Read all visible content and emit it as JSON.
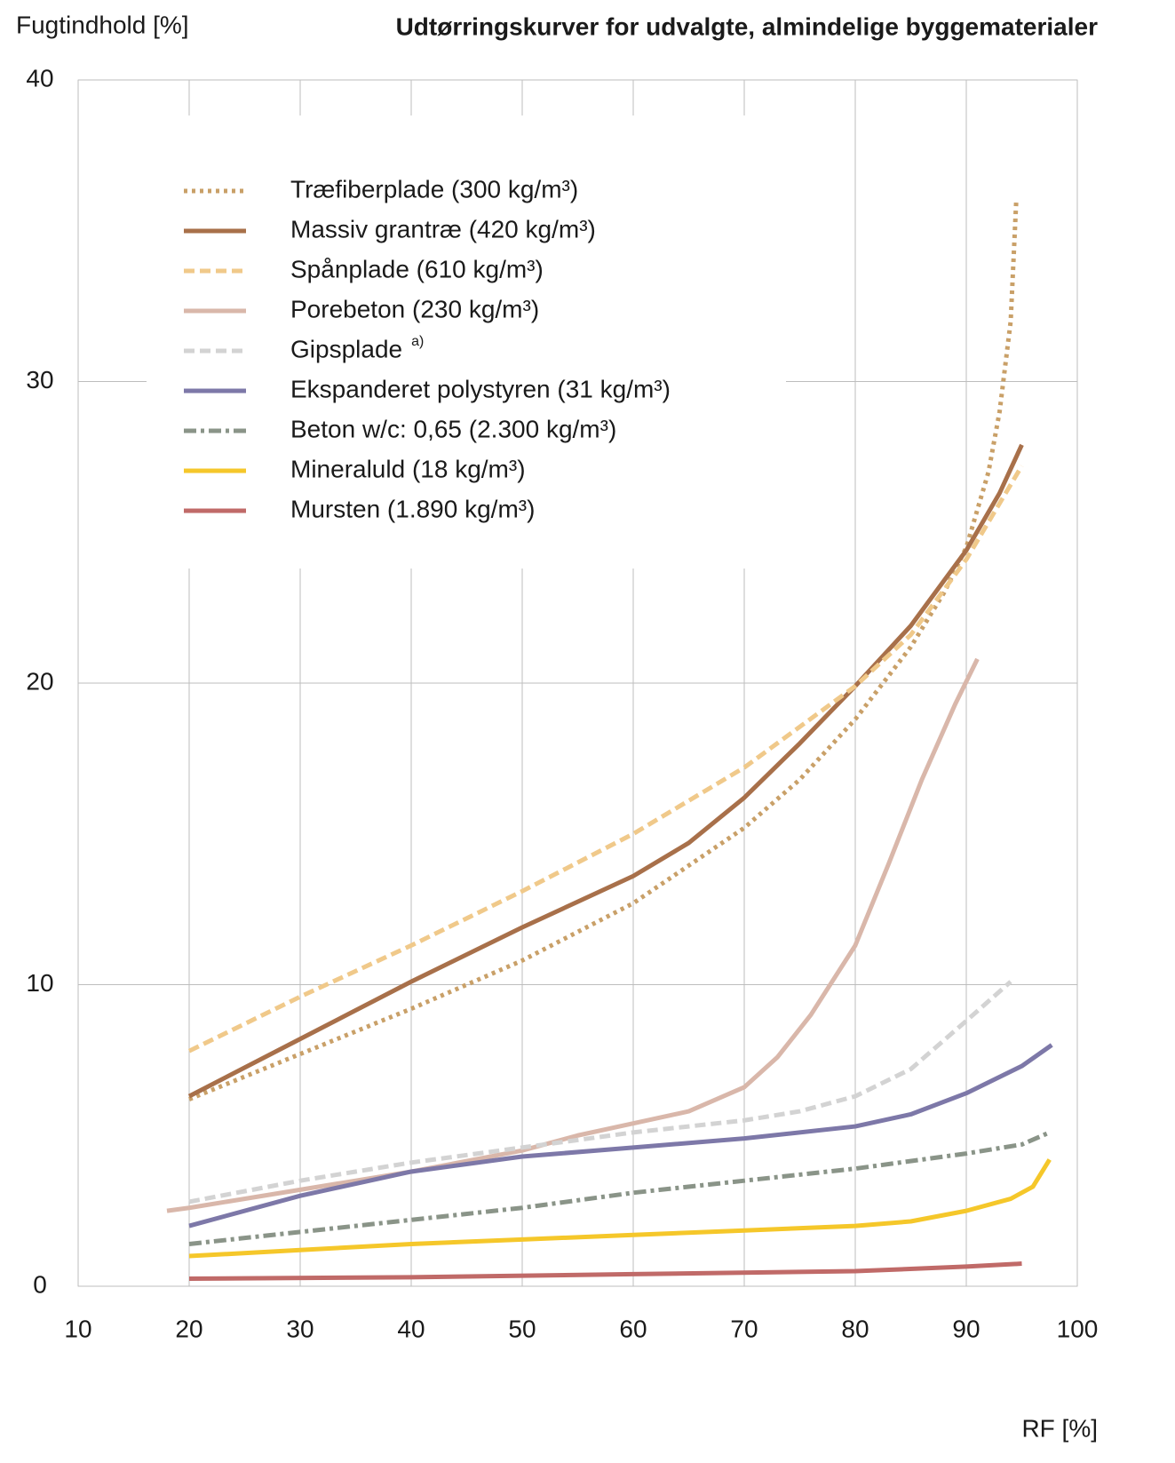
{
  "chart_data": {
    "type": "line",
    "title": "Udtørringskurver for udvalgte, almindelige byggematerialer",
    "y_label": "Fugtindhold [%]",
    "x_label": "RF [%]",
    "xlim": [
      10,
      100
    ],
    "xticks": [
      10,
      20,
      30,
      40,
      50,
      60,
      70,
      80,
      90,
      100
    ],
    "ylim": [
      0,
      40
    ],
    "yticks": [
      0,
      10,
      20,
      30,
      40
    ],
    "grid": true,
    "legend": "upper left",
    "series": [
      {
        "name": "Træfiberplade (300 kg/m³)",
        "color": "#c9a068",
        "style": "dotted",
        "x": [
          20,
          30,
          40,
          50,
          60,
          70,
          75,
          80,
          85,
          88,
          90,
          92,
          93,
          94,
          94.5
        ],
        "values": [
          6.2,
          7.7,
          9.2,
          10.8,
          12.7,
          15.2,
          16.8,
          18.8,
          21.2,
          23,
          24.5,
          27,
          29,
          32,
          36
        ]
      },
      {
        "name": "Massiv grantræ (420 kg/m³)",
        "color": "#a8704a",
        "style": "solid",
        "x": [
          20,
          30,
          40,
          50,
          60,
          65,
          70,
          75,
          80,
          85,
          90,
          93,
          95
        ],
        "values": [
          6.3,
          8.2,
          10.1,
          11.9,
          13.6,
          14.7,
          16.2,
          18,
          19.9,
          21.9,
          24.4,
          26.3,
          27.9
        ]
      },
      {
        "name": "Spånplade (610 kg/m³)",
        "color": "#f0c98a",
        "style": "dashed",
        "x": [
          20,
          30,
          40,
          50,
          60,
          70,
          80,
          85,
          90,
          95
        ],
        "values": [
          7.8,
          9.6,
          11.3,
          13.1,
          15,
          17.2,
          19.9,
          21.6,
          24.1,
          27.2
        ]
      },
      {
        "name": "Porebeton (230 kg/m³)",
        "color": "#d9b7aa",
        "style": "solid",
        "x": [
          18,
          20,
          30,
          40,
          50,
          55,
          60,
          65,
          70,
          73,
          76,
          80,
          83,
          86,
          89,
          91
        ],
        "values": [
          2.5,
          2.6,
          3.2,
          3.8,
          4.5,
          5,
          5.4,
          5.8,
          6.6,
          7.6,
          9,
          11.3,
          14,
          16.8,
          19.3,
          20.8
        ]
      },
      {
        "name": "Gipsplade",
        "note": "a)",
        "color": "#d3d3d3",
        "style": "dashed",
        "x": [
          20,
          30,
          40,
          50,
          60,
          70,
          75,
          80,
          85,
          90,
          94
        ],
        "values": [
          2.8,
          3.5,
          4.1,
          4.6,
          5.1,
          5.5,
          5.8,
          6.3,
          7.2,
          8.8,
          10.1
        ]
      },
      {
        "name": "Ekspanderet polystyren (31 kg/m³)",
        "color": "#7d78a8",
        "style": "solid",
        "x": [
          20,
          30,
          40,
          50,
          60,
          70,
          80,
          85,
          90,
          95,
          97.7
        ],
        "values": [
          2,
          3,
          3.8,
          4.3,
          4.6,
          4.9,
          5.3,
          5.7,
          6.4,
          7.3,
          8
        ]
      },
      {
        "name": "Beton w/c: 0,65 (2.300 kg/m³)",
        "color": "#8a9488",
        "style": "dashdot",
        "x": [
          20,
          30,
          40,
          50,
          60,
          70,
          80,
          90,
          95,
          97.5
        ],
        "values": [
          1.4,
          1.8,
          2.2,
          2.6,
          3.1,
          3.5,
          3.9,
          4.4,
          4.7,
          5.1
        ]
      },
      {
        "name": "Mineraluld (18 kg/m³)",
        "color": "#f5c72a",
        "style": "solid",
        "x": [
          20,
          30,
          40,
          50,
          60,
          70,
          80,
          85,
          90,
          94,
          96,
          97.5
        ],
        "values": [
          1,
          1.2,
          1.4,
          1.55,
          1.7,
          1.85,
          2,
          2.15,
          2.5,
          2.9,
          3.3,
          4.2
        ]
      },
      {
        "name": "Mursten (1.890 kg/m³)",
        "color": "#c06a68",
        "style": "solid",
        "x": [
          20,
          40,
          60,
          80,
          90,
          95
        ],
        "values": [
          0.25,
          0.3,
          0.4,
          0.5,
          0.65,
          0.75
        ]
      }
    ]
  }
}
